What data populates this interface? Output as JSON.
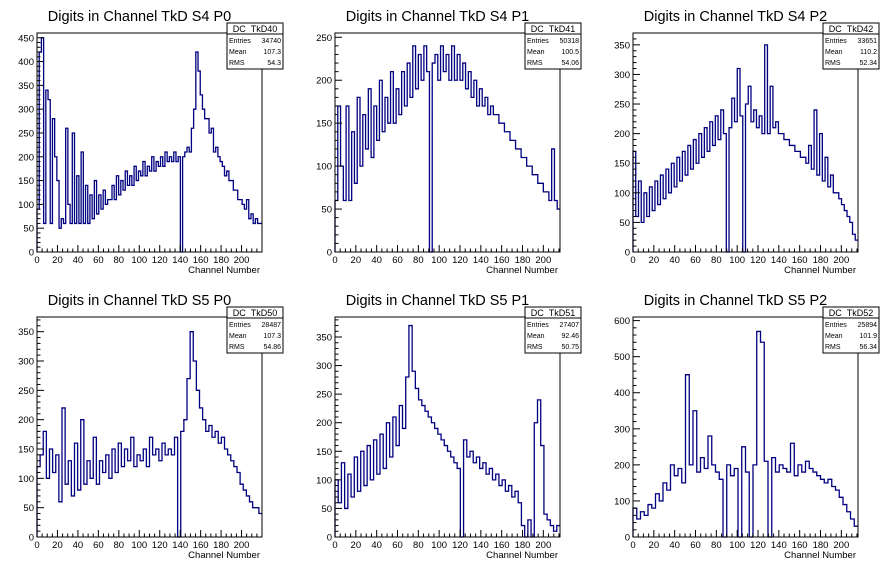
{
  "chart_data": [
    {
      "type": "histogram",
      "title": "Digits in Channel TkD S4 P0",
      "xlabel": "Channel Number",
      "xlim": [
        0,
        220
      ],
      "ylim": [
        0,
        460
      ],
      "xticks": [
        0,
        20,
        40,
        60,
        80,
        100,
        120,
        140,
        160,
        180,
        200
      ],
      "yticks": [
        50,
        100,
        150,
        200,
        250,
        300,
        350,
        400,
        450
      ],
      "stats": {
        "name": "DC_TkD40",
        "entries": "34740",
        "mean": "107.3",
        "rms": "54.3"
      },
      "series": [
        {
          "values": [
            90,
            420,
            450,
            60,
            340,
            320,
            60,
            280,
            200,
            150,
            50,
            70,
            60,
            260,
            100,
            60,
            250,
            60,
            160,
            60,
            210,
            60,
            140,
            60,
            120,
            70,
            150,
            80,
            120,
            90,
            130,
            100,
            110,
            110,
            140,
            110,
            160,
            120,
            150,
            130,
            170,
            140,
            160,
            140,
            180,
            150,
            170,
            160,
            190,
            160,
            180,
            170,
            200,
            170,
            190,
            180,
            200,
            180,
            210,
            190,
            200,
            190,
            210,
            190,
            200,
            0,
            200,
            210,
            220,
            210,
            260,
            300,
            420,
            380,
            330,
            300,
            280,
            280,
            250,
            260,
            210,
            220,
            200,
            190,
            180,
            160,
            170,
            150,
            150,
            130,
            130,
            110,
            110,
            100,
            90,
            110,
            70,
            80,
            60,
            70,
            60,
            60
          ]
        }
      ]
    },
    {
      "type": "histogram",
      "title": "Digits in Channel TkD S4 P1",
      "xlabel": "Channel Number",
      "xlim": [
        0,
        216
      ],
      "ylim": [
        0,
        255
      ],
      "xticks": [
        0,
        20,
        40,
        60,
        80,
        100,
        120,
        140,
        160,
        180,
        200
      ],
      "yticks": [
        50,
        100,
        150,
        200,
        250
      ],
      "stats": {
        "name": "DC_TkD41",
        "entries": "50318",
        "mean": "100.5",
        "rms": "54.06"
      },
      "series": [
        {
          "values": [
            60,
            170,
            100,
            60,
            170,
            60,
            140,
            80,
            180,
            100,
            160,
            120,
            190,
            110,
            170,
            130,
            200,
            140,
            180,
            150,
            210,
            150,
            190,
            160,
            210,
            170,
            220,
            180,
            240,
            190,
            230,
            200,
            240,
            210,
            0,
            220,
            230,
            200,
            240,
            210,
            230,
            200,
            240,
            200,
            230,
            200,
            220,
            190,
            210,
            180,
            200,
            170,
            190,
            170,
            180,
            160,
            170,
            160,
            160,
            150,
            150,
            140,
            140,
            130,
            130,
            120,
            120,
            110,
            110,
            100,
            100,
            90,
            90,
            80,
            80,
            70,
            70,
            60,
            120,
            60,
            50
          ]
        }
      ]
    },
    {
      "type": "histogram",
      "title": "Digits in Channel TkD S4 P2",
      "xlabel": "Channel Number",
      "xlim": [
        0,
        216
      ],
      "ylim": [
        0,
        370
      ],
      "xticks": [
        0,
        20,
        40,
        60,
        80,
        100,
        120,
        140,
        160,
        180,
        200
      ],
      "yticks": [
        50,
        100,
        150,
        200,
        250,
        300,
        350
      ],
      "stats": {
        "name": "DC_TkD42",
        "entries": "33651",
        "mean": "110.2",
        "rms": "52.34"
      },
      "series": [
        {
          "values": [
            170,
            60,
            120,
            50,
            100,
            60,
            110,
            70,
            120,
            80,
            130,
            90,
            140,
            100,
            150,
            110,
            160,
            120,
            170,
            130,
            180,
            140,
            190,
            150,
            200,
            160,
            210,
            170,
            220,
            180,
            230,
            190,
            240,
            200,
            0,
            210,
            260,
            220,
            310,
            230,
            0,
            250,
            280,
            220,
            240,
            210,
            230,
            200,
            350,
            200,
            280,
            210,
            220,
            200,
            200,
            190,
            190,
            180,
            180,
            170,
            170,
            160,
            160,
            150,
            180,
            140,
            240,
            130,
            200,
            120,
            160,
            110,
            130,
            100,
            100,
            90,
            80,
            70,
            60,
            50,
            30,
            20
          ]
        }
      ]
    },
    {
      "type": "histogram",
      "title": "Digits in Channel TkD S5 P0",
      "xlabel": "Channel Number",
      "xlim": [
        0,
        220
      ],
      "ylim": [
        0,
        375
      ],
      "xticks": [
        0,
        20,
        40,
        60,
        80,
        100,
        120,
        140,
        160,
        180,
        200
      ],
      "yticks": [
        50,
        100,
        150,
        200,
        250,
        300,
        350
      ],
      "stats": {
        "name": "DC_TkD50",
        "entries": "28487",
        "mean": "107.3",
        "rms": "54.86"
      },
      "series": [
        {
          "values": [
            120,
            140,
            180,
            100,
            150,
            110,
            140,
            60,
            220,
            90,
            130,
            70,
            160,
            80,
            200,
            90,
            130,
            100,
            170,
            90,
            130,
            110,
            140,
            100,
            150,
            110,
            160,
            120,
            150,
            130,
            170,
            120,
            140,
            130,
            150,
            120,
            170,
            140,
            150,
            130,
            160,
            140,
            150,
            140,
            170,
            0,
            180,
            200,
            270,
            350,
            300,
            250,
            220,
            200,
            180,
            190,
            170,
            180,
            160,
            170,
            150,
            140,
            130,
            120,
            110,
            90,
            80,
            70,
            60,
            50,
            50,
            40
          ]
        }
      ]
    },
    {
      "type": "histogram",
      "title": "Digits in Channel TkD S5 P1",
      "xlabel": "Channel Number",
      "xlim": [
        0,
        216
      ],
      "ylim": [
        0,
        385
      ],
      "xticks": [
        0,
        20,
        40,
        60,
        80,
        100,
        120,
        140,
        160,
        180,
        200
      ],
      "yticks": [
        50,
        100,
        150,
        200,
        250,
        300,
        350
      ],
      "stats": {
        "name": "DC_TkD51",
        "entries": "27407",
        "mean": "92.46",
        "rms": "50.75"
      },
      "series": [
        {
          "values": [
            100,
            60,
            130,
            50,
            110,
            70,
            140,
            80,
            150,
            90,
            160,
            100,
            170,
            110,
            180,
            120,
            200,
            140,
            210,
            160,
            230,
            190,
            280,
            370,
            290,
            260,
            240,
            230,
            220,
            210,
            200,
            190,
            180,
            170,
            160,
            150,
            140,
            130,
            120,
            0,
            170,
            140,
            150,
            130,
            140,
            120,
            130,
            110,
            120,
            100,
            110,
            90,
            100,
            80,
            90,
            70,
            80,
            60,
            20,
            0,
            30,
            0,
            200,
            240,
            160,
            40,
            30,
            20,
            10,
            20
          ]
        }
      ]
    },
    {
      "type": "histogram",
      "title": "Digits in Channel TkD S5 P2",
      "xlabel": "Channel Number",
      "xlim": [
        0,
        216
      ],
      "ylim": [
        0,
        610
      ],
      "xticks": [
        0,
        20,
        40,
        60,
        80,
        100,
        120,
        140,
        160,
        180,
        200
      ],
      "yticks": [
        100,
        200,
        300,
        400,
        500,
        600
      ],
      "stats": {
        "name": "DC_TkD52",
        "entries": "25894",
        "mean": "101.9",
        "rms": "56.34"
      },
      "series": [
        {
          "values": [
            80,
            50,
            70,
            60,
            90,
            80,
            120,
            100,
            150,
            130,
            200,
            170,
            190,
            150,
            450,
            200,
            350,
            180,
            220,
            190,
            280,
            200,
            180,
            160,
            0,
            200,
            170,
            190,
            0,
            250,
            180,
            0,
            200,
            570,
            540,
            210,
            0,
            220,
            180,
            200,
            190,
            180,
            260,
            170,
            200,
            180,
            210,
            190,
            180,
            170,
            160,
            150,
            160,
            140,
            130,
            110,
            90,
            70,
            50,
            30
          ]
        }
      ]
    }
  ]
}
